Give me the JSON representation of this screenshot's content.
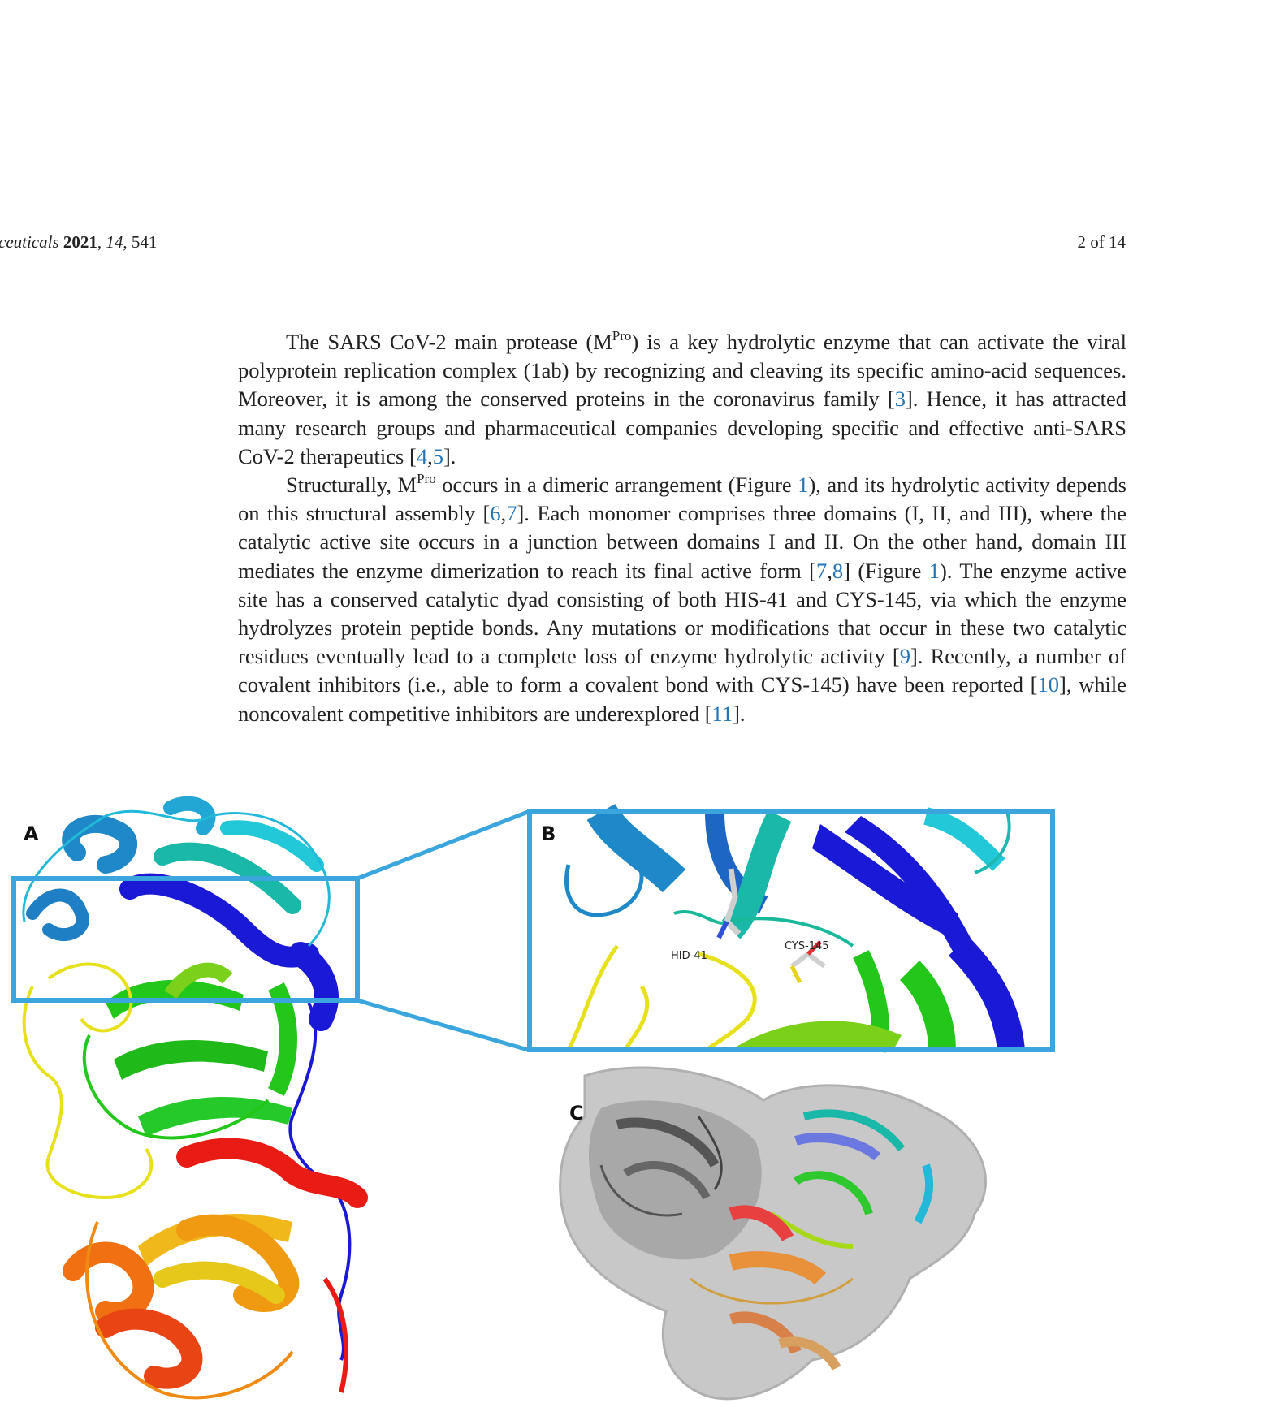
{
  "header": {
    "journal_name": "ceuticals",
    "year": "2021",
    "volume": "14",
    "article": "541",
    "page": "2 of 14"
  },
  "paragraphs": [
    {
      "segments": [
        {
          "t": "The SARS CoV-2 main protease (M"
        },
        {
          "t": "Pro",
          "sup": true
        },
        {
          "t": ") is a key hydrolytic enzyme that can activate the viral polyprotein replication complex (1ab) by recognizing and cleaving its specific amino-acid sequences. Moreover, it is among the conserved proteins in the coronavirus family ["
        },
        {
          "t": "3",
          "cite": true
        },
        {
          "t": "]. Hence, it has attracted many research groups and pharmaceutical companies developing specific and effective anti-SARS CoV-2 therapeutics ["
        },
        {
          "t": "4",
          "cite": true
        },
        {
          "t": ","
        },
        {
          "t": "5",
          "cite": true
        },
        {
          "t": "]."
        }
      ]
    },
    {
      "segments": [
        {
          "t": "Structurally, M"
        },
        {
          "t": "Pro",
          "sup": true
        },
        {
          "t": " occurs in a dimeric arrangement (Figure "
        },
        {
          "t": "1",
          "cite": true
        },
        {
          "t": "), and its hydrolytic activity depends on this structural assembly ["
        },
        {
          "t": "6",
          "cite": true
        },
        {
          "t": ","
        },
        {
          "t": "7",
          "cite": true
        },
        {
          "t": "]. Each monomer comprises three domains (I, II, and III), where the catalytic active site occurs in a junction between domains I and II. On the other hand, domain III mediates the enzyme dimerization to reach its final active form ["
        },
        {
          "t": "7",
          "cite": true
        },
        {
          "t": ","
        },
        {
          "t": "8",
          "cite": true
        },
        {
          "t": "] (Figure "
        },
        {
          "t": "1",
          "cite": true
        },
        {
          "t": "). The enzyme active site has a conserved catalytic dyad consisting of both HIS-41 and CYS-145, via which the enzyme hydrolyzes protein peptide bonds. Any mutations or modifications that occur in these two catalytic residues eventually lead to a complete loss of enzyme hydrolytic activity ["
        },
        {
          "t": "9",
          "cite": true
        },
        {
          "t": "]. Recently, a number of covalent inhibitors (i.e., able to form a covalent bond with CYS-145) have been reported ["
        },
        {
          "t": "10",
          "cite": true
        },
        {
          "t": "], while noncovalent competitive inhibitors are underexplored ["
        },
        {
          "t": "11",
          "cite": true
        },
        {
          "t": "]."
        }
      ]
    }
  ],
  "figure": {
    "panel_a": "A",
    "panel_b": "B",
    "panel_c": "C",
    "residue_1": "HID-41",
    "residue_2": "CYS-145",
    "colors": {
      "frame": "#3aa6dd",
      "cite": "#2474b5",
      "blue": "#1a1ad6",
      "cyan": "#22b8d8",
      "teal": "#1fb89a",
      "green": "#22c71a",
      "yellow": "#e6e11a",
      "orange": "#f08a12",
      "red": "#e81c14",
      "surface": "#bdbdbd"
    }
  }
}
